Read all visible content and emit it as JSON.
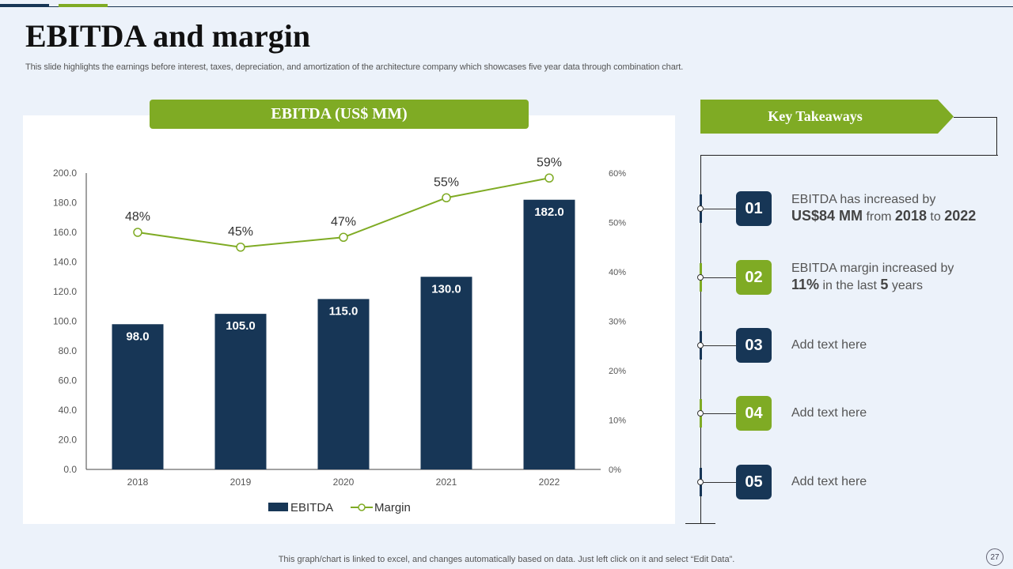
{
  "slide": {
    "title": "EBITDA and margin",
    "subtitle": "This slide highlights the earnings before interest, taxes, depreciation, and amortization of the architecture company which showcases five year data through combination chart.",
    "footer": "This graph/chart is linked to excel,  and changes automatically based on data. Just left click on it and select “Edit Data”.",
    "page_number": "27"
  },
  "colors": {
    "navy": "#173656",
    "green": "#7fab24"
  },
  "chart_data": {
    "type": "bar",
    "title": "EBITDA (US$ MM)",
    "categories": [
      "2018",
      "2019",
      "2020",
      "2021",
      "2022"
    ],
    "series": [
      {
        "name": "EBITDA",
        "type": "bar",
        "axis": "left",
        "values": [
          98.0,
          105.0,
          115.0,
          130.0,
          182.0
        ],
        "labels": [
          "98.0",
          "105.0",
          "115.0",
          "130.0",
          "182.0"
        ]
      },
      {
        "name": "Margin",
        "type": "line",
        "axis": "right",
        "values": [
          48,
          45,
          47,
          55,
          59
        ],
        "labels": [
          "48%",
          "45%",
          "47%",
          "55%",
          "59%"
        ]
      }
    ],
    "y_left": {
      "range": [
        0,
        200
      ],
      "ticks": [
        "0.0",
        "20.0",
        "40.0",
        "60.0",
        "80.0",
        "100.0",
        "120.0",
        "140.0",
        "160.0",
        "180.0",
        "200.0"
      ]
    },
    "y_right": {
      "range": [
        0,
        60
      ],
      "ticks": [
        "0%",
        "10%",
        "20%",
        "30%",
        "40%",
        "50%",
        "60%"
      ]
    },
    "grid": false,
    "legend_position": "bottom"
  },
  "takeaways": {
    "title": "Key Takeaways",
    "items": [
      {
        "number": "01",
        "color": "#173656",
        "line1": "EBITDA has increased by",
        "highlight": "US$84 MM",
        "mid1": " from ",
        "year_from": "2018",
        "mid2": " to ",
        "year_to": "2022"
      },
      {
        "number": "02",
        "color": "#7fab24",
        "line1": "EBITDA margin increased by",
        "highlight": "11%",
        "mid1": " in the last ",
        "years_count": "5",
        "mid2": " years"
      },
      {
        "number": "03",
        "color": "#173656",
        "text": "Add text here"
      },
      {
        "number": "04",
        "color": "#7fab24",
        "text": "Add text here"
      },
      {
        "number": "05",
        "color": "#173656",
        "text": "Add text here"
      }
    ]
  }
}
